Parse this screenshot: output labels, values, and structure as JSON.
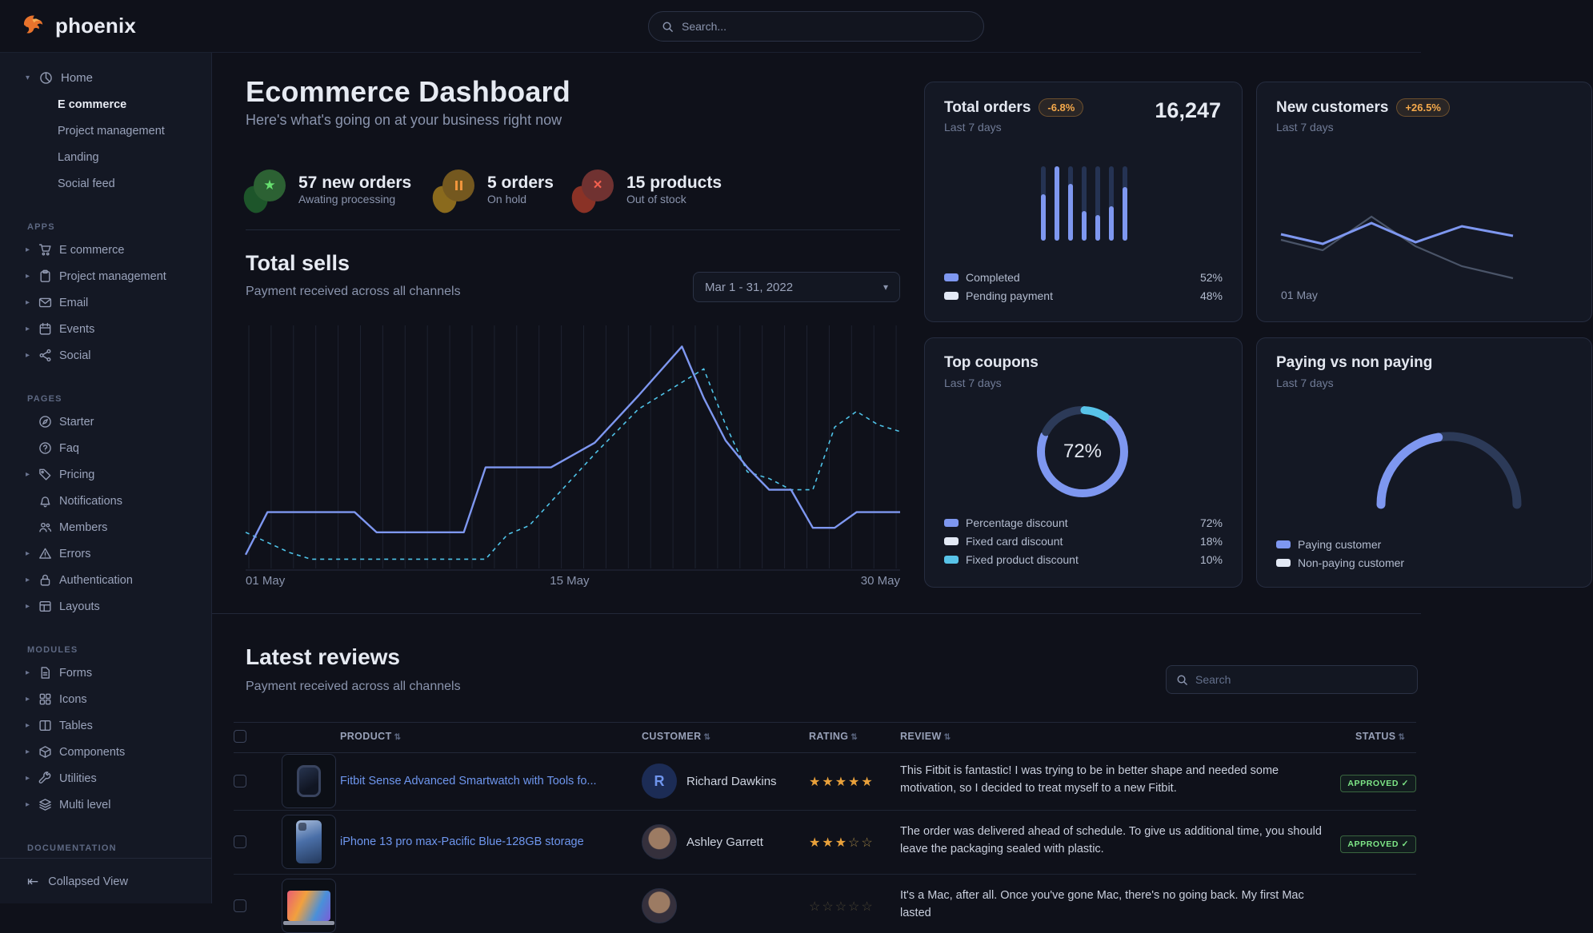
{
  "brand": {
    "name": "phoenix"
  },
  "topnav": {
    "search_placeholder": "Search..."
  },
  "sidebar": {
    "home": {
      "label": "Home",
      "children": [
        {
          "label": "E commerce"
        },
        {
          "label": "Project management"
        },
        {
          "label": "Landing"
        },
        {
          "label": "Social feed"
        }
      ]
    },
    "sections": [
      {
        "title": "APPS",
        "items": [
          {
            "label": "E commerce"
          },
          {
            "label": "Project management"
          },
          {
            "label": "Email"
          },
          {
            "label": "Events"
          },
          {
            "label": "Social"
          }
        ]
      },
      {
        "title": "PAGES",
        "items": [
          {
            "label": "Starter"
          },
          {
            "label": "Faq"
          },
          {
            "label": "Pricing"
          },
          {
            "label": "Notifications"
          },
          {
            "label": "Members"
          },
          {
            "label": "Errors"
          },
          {
            "label": "Authentication"
          },
          {
            "label": "Layouts"
          }
        ]
      },
      {
        "title": "MODULES",
        "items": [
          {
            "label": "Forms"
          },
          {
            "label": "Icons"
          },
          {
            "label": "Tables"
          },
          {
            "label": "Components"
          },
          {
            "label": "Utilities"
          },
          {
            "label": "Multi level"
          }
        ]
      },
      {
        "title": "DOCUMENTATION",
        "items": []
      }
    ],
    "footer": {
      "collapsed_view": "Collapsed View"
    }
  },
  "header": {
    "title": "Ecommerce Dashboard",
    "subtitle": "Here's what's going on at your business right now"
  },
  "stats": [
    {
      "value": "57 new orders",
      "caption": "Awating processing"
    },
    {
      "value": "5 orders",
      "caption": "On hold"
    },
    {
      "value": "15 products",
      "caption": "Out of stock"
    }
  ],
  "total_sells": {
    "title": "Total sells",
    "subtitle": "Payment received across all channels",
    "date_range": "Mar 1 - 31, 2022",
    "chart_data": {
      "type": "line",
      "title": "Total sells",
      "x_labels": [
        "01 May",
        "15 May",
        "30 May"
      ],
      "x_range": [
        1,
        31
      ],
      "y_range": [
        0,
        100
      ],
      "grid": "vertical",
      "series": [
        {
          "name": "current",
          "style": "solid",
          "color": "#7e97f0",
          "points": [
            [
              1,
              4
            ],
            [
              2,
              23
            ],
            [
              6,
              23
            ],
            [
              7,
              14
            ],
            [
              11,
              14
            ],
            [
              12,
              43
            ],
            [
              15,
              43
            ],
            [
              17,
              54
            ],
            [
              19,
              75
            ],
            [
              21,
              97
            ],
            [
              22,
              74
            ],
            [
              23,
              55
            ],
            [
              24,
              43
            ],
            [
              25,
              33
            ],
            [
              26,
              33
            ],
            [
              27,
              16
            ],
            [
              28,
              16
            ],
            [
              29,
              23
            ],
            [
              31,
              23
            ]
          ]
        },
        {
          "name": "previous",
          "style": "dashed",
          "color": "#4fc3e8",
          "points": [
            [
              1,
              14
            ],
            [
              3,
              5
            ],
            [
              4,
              2
            ],
            [
              12,
              2
            ],
            [
              13,
              13
            ],
            [
              14,
              17
            ],
            [
              17,
              49
            ],
            [
              19,
              69
            ],
            [
              22,
              87
            ],
            [
              23,
              62
            ],
            [
              24,
              41
            ],
            [
              25,
              38
            ],
            [
              26,
              33
            ],
            [
              27,
              33
            ],
            [
              28,
              61
            ],
            [
              29,
              68
            ],
            [
              30,
              62
            ],
            [
              31,
              59
            ]
          ]
        }
      ]
    }
  },
  "cards": {
    "total_orders": {
      "title": "Total orders",
      "badge": "-6.8%",
      "period": "Last 7 days",
      "value": "16,247",
      "chart_data": {
        "type": "bar",
        "bar_fill_pct": [
          62,
          100,
          76,
          40,
          34,
          46,
          72
        ]
      },
      "legend": [
        {
          "label": "Completed",
          "value": "52%"
        },
        {
          "label": "Pending payment",
          "value": "48%"
        }
      ]
    },
    "new_customers": {
      "title": "New customers",
      "badge": "+26.5%",
      "period": "Last 7 days",
      "x_label": "01 May",
      "chart_data": {
        "type": "line",
        "series": [
          {
            "name": "current",
            "color": "#7e97f0",
            "points": [
              [
                0,
                40
              ],
              [
                18,
                52
              ],
              [
                39,
                26
              ],
              [
                58,
                50
              ],
              [
                78,
                30
              ],
              [
                100,
                42
              ]
            ]
          },
          {
            "name": "previous",
            "color": "#4a5468",
            "points": [
              [
                0,
                47
              ],
              [
                18,
                60
              ],
              [
                39,
                18
              ],
              [
                58,
                55
              ],
              [
                78,
                80
              ],
              [
                100,
                95
              ]
            ]
          }
        ]
      }
    },
    "top_coupons": {
      "title": "Top coupons",
      "period": "Last 7 days",
      "center_value": "72%",
      "chart_data": {
        "type": "pie",
        "values": [
          72,
          18,
          10
        ]
      },
      "legend": [
        {
          "label": "Percentage discount",
          "value": "72%"
        },
        {
          "label": "Fixed card discount",
          "value": "18%"
        },
        {
          "label": "Fixed product discount",
          "value": "10%"
        }
      ]
    },
    "paying": {
      "title": "Paying vs non paying",
      "period": "Last 7 days",
      "chart_data": {
        "type": "gauge",
        "arc_fill_pct": 45
      },
      "legend": [
        {
          "label": "Paying customer"
        },
        {
          "label": "Non-paying customer"
        }
      ]
    }
  },
  "reviews": {
    "title": "Latest reviews",
    "subtitle": "Payment received across all channels",
    "search_placeholder": "Search",
    "columns": [
      "PRODUCT",
      "CUSTOMER",
      "RATING",
      "REVIEW",
      "STATUS"
    ],
    "rows": [
      {
        "product": "Fitbit Sense Advanced Smartwatch with Tools fo...",
        "customer": "Richard Dawkins",
        "initials": "R",
        "rating": 5,
        "review": "This Fitbit is fantastic! I was trying to be in better shape and needed some motivation, so I decided to treat myself to a new Fitbit.",
        "status": "APPROVED"
      },
      {
        "product": "iPhone 13 pro max-Pacific Blue-128GB storage",
        "customer": "Ashley Garrett",
        "rating": 3,
        "review": "The order was delivered ahead of schedule. To give us additional time, you should leave the packaging sealed with plastic.",
        "status": "APPROVED"
      },
      {
        "product": "",
        "customer": "",
        "rating": 0,
        "review": "It's a Mac, after all. Once you've gone Mac, there's no going back. My first Mac lasted",
        "status": ""
      }
    ]
  },
  "colors": {
    "accent_blue": "#7e97f0",
    "cyan": "#4fc3e8",
    "dark_segment": "#2c3a58",
    "amber": "#f5a94b",
    "green": "#7ee787",
    "white_swatch": "#e3e9f5"
  }
}
